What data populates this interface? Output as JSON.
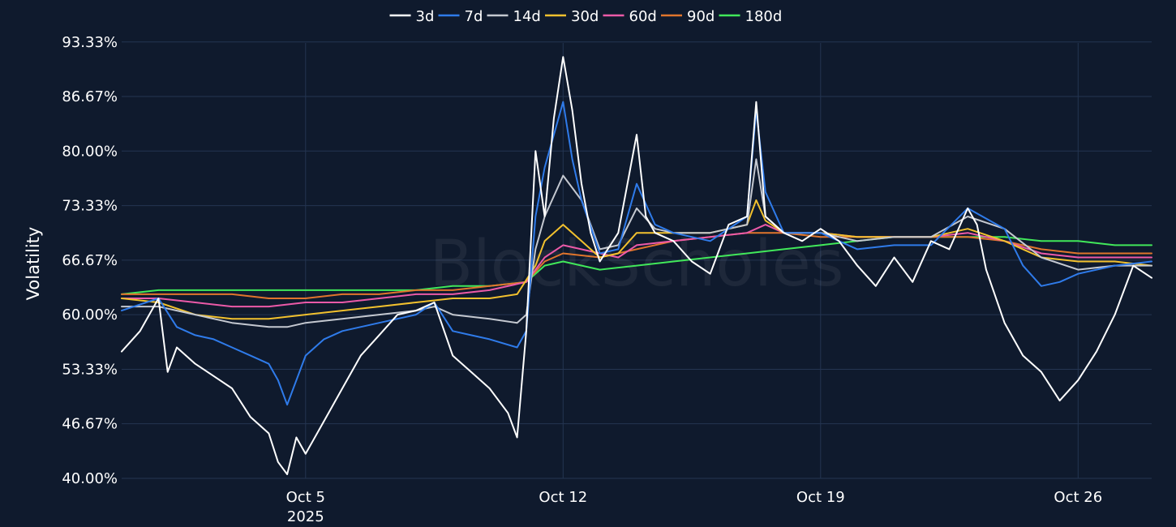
{
  "watermark": "BlockScholes",
  "chart_data": {
    "type": "line",
    "title": "",
    "xlabel": "",
    "ylabel": "Volatility",
    "x_range": [
      "2025-09-30T00:00",
      "2025-10-28T00:00"
    ],
    "ylim": [
      40,
      94
    ],
    "y_ticks": [
      40.0,
      46.67,
      53.33,
      60.0,
      66.67,
      73.33,
      80.0,
      86.67,
      93.33
    ],
    "y_tick_labels": [
      "40.00%",
      "46.67%",
      "53.33%",
      "60.00%",
      "66.67%",
      "73.33%",
      "80.00%",
      "86.67%",
      "93.33%"
    ],
    "x_ticks": [
      {
        "date": "2025-10-05",
        "label": "Oct 5",
        "sublabel": "2025"
      },
      {
        "date": "2025-10-12",
        "label": "Oct 12",
        "sublabel": ""
      },
      {
        "date": "2025-10-19",
        "label": "Oct 19",
        "sublabel": ""
      },
      {
        "date": "2025-10-26",
        "label": "Oct 26",
        "sublabel": ""
      }
    ],
    "grid": true,
    "legend_position": "top-center",
    "series": [
      {
        "name": "3d",
        "color": "#ffffff",
        "x": [
          "2025-09-30T00:00",
          "2025-09-30T12:00",
          "2025-10-01T00:00",
          "2025-10-01T06:00",
          "2025-10-01T12:00",
          "2025-10-02T00:00",
          "2025-10-02T12:00",
          "2025-10-03T00:00",
          "2025-10-03T12:00",
          "2025-10-04T00:00",
          "2025-10-04T06:00",
          "2025-10-04T12:00",
          "2025-10-04T18:00",
          "2025-10-05T00:00",
          "2025-10-05T12:00",
          "2025-10-06T00:00",
          "2025-10-06T12:00",
          "2025-10-07T00:00",
          "2025-10-07T12:00",
          "2025-10-08T00:00",
          "2025-10-08T12:00",
          "2025-10-09T00:00",
          "2025-10-09T12:00",
          "2025-10-10T00:00",
          "2025-10-10T12:00",
          "2025-10-10T18:00",
          "2025-10-11T00:00",
          "2025-10-11T06:00",
          "2025-10-11T12:00",
          "2025-10-11T18:00",
          "2025-10-12T00:00",
          "2025-10-12T06:00",
          "2025-10-12T12:00",
          "2025-10-12T18:00",
          "2025-10-13T00:00",
          "2025-10-13T12:00",
          "2025-10-14T00:00",
          "2025-10-14T06:00",
          "2025-10-14T12:00",
          "2025-10-15T00:00",
          "2025-10-15T12:00",
          "2025-10-16T00:00",
          "2025-10-16T12:00",
          "2025-10-17T00:00",
          "2025-10-17T06:00",
          "2025-10-17T12:00",
          "2025-10-18T00:00",
          "2025-10-18T12:00",
          "2025-10-19T00:00",
          "2025-10-19T12:00",
          "2025-10-20T00:00",
          "2025-10-20T12:00",
          "2025-10-21T00:00",
          "2025-10-21T12:00",
          "2025-10-22T00:00",
          "2025-10-22T12:00",
          "2025-10-23T00:00",
          "2025-10-23T06:00",
          "2025-10-23T12:00",
          "2025-10-24T00:00",
          "2025-10-24T12:00",
          "2025-10-25T00:00",
          "2025-10-25T12:00",
          "2025-10-26T00:00",
          "2025-10-26T12:00",
          "2025-10-27T00:00",
          "2025-10-27T12:00",
          "2025-10-28T00:00"
        ],
        "values": [
          55.5,
          58.0,
          62.0,
          53.0,
          56.0,
          54.0,
          52.5,
          51.0,
          47.5,
          45.5,
          42.0,
          40.5,
          45.0,
          43.0,
          47.0,
          51.0,
          55.0,
          57.5,
          60.0,
          60.5,
          61.5,
          55.0,
          53.0,
          51.0,
          48.0,
          45.0,
          58.0,
          80.0,
          72.0,
          84.0,
          91.5,
          85.0,
          76.0,
          70.0,
          66.5,
          70.0,
          82.0,
          72.0,
          70.0,
          69.0,
          66.5,
          65.0,
          71.0,
          72.0,
          86.0,
          72.0,
          70.0,
          69.0,
          70.5,
          69.0,
          66.0,
          63.5,
          67.0,
          64.0,
          69.0,
          68.0,
          73.0,
          71.0,
          65.5,
          59.0,
          55.0,
          53.0,
          49.5,
          52.0,
          55.5,
          60.0,
          66.0,
          64.5
        ]
      },
      {
        "name": "7d",
        "color": "#2f7bea",
        "x": [
          "2025-09-30T00:00",
          "2025-10-01T00:00",
          "2025-10-01T12:00",
          "2025-10-02T00:00",
          "2025-10-02T12:00",
          "2025-10-03T00:00",
          "2025-10-03T12:00",
          "2025-10-04T00:00",
          "2025-10-04T06:00",
          "2025-10-04T12:00",
          "2025-10-05T00:00",
          "2025-10-05T12:00",
          "2025-10-06T00:00",
          "2025-10-07T00:00",
          "2025-10-08T00:00",
          "2025-10-08T12:00",
          "2025-10-09T00:00",
          "2025-10-09T12:00",
          "2025-10-10T00:00",
          "2025-10-10T18:00",
          "2025-10-11T00:00",
          "2025-10-11T06:00",
          "2025-10-11T12:00",
          "2025-10-12T00:00",
          "2025-10-12T06:00",
          "2025-10-12T12:00",
          "2025-10-13T00:00",
          "2025-10-13T12:00",
          "2025-10-14T00:00",
          "2025-10-14T12:00",
          "2025-10-15T00:00",
          "2025-10-16T00:00",
          "2025-10-17T00:00",
          "2025-10-17T06:00",
          "2025-10-17T12:00",
          "2025-10-18T00:00",
          "2025-10-19T00:00",
          "2025-10-20T00:00",
          "2025-10-21T00:00",
          "2025-10-22T00:00",
          "2025-10-23T00:00",
          "2025-10-24T00:00",
          "2025-10-24T12:00",
          "2025-10-25T00:00",
          "2025-10-25T12:00",
          "2025-10-26T00:00",
          "2025-10-27T00:00",
          "2025-10-28T00:00"
        ],
        "values": [
          60.5,
          62.0,
          58.5,
          57.5,
          57.0,
          56.0,
          55.0,
          54.0,
          52.0,
          49.0,
          55.0,
          57.0,
          58.0,
          59.0,
          60.0,
          61.5,
          58.0,
          57.5,
          57.0,
          56.0,
          58.0,
          72.0,
          78.0,
          86.0,
          79.0,
          74.0,
          67.5,
          68.0,
          76.0,
          71.0,
          70.0,
          69.0,
          72.0,
          85.0,
          75.0,
          70.0,
          70.0,
          68.0,
          68.5,
          68.5,
          73.0,
          70.5,
          66.0,
          63.5,
          64.0,
          65.0,
          66.0,
          66.5
        ]
      },
      {
        "name": "14d",
        "color": "#c4c8d0",
        "x": [
          "2025-09-30T00:00",
          "2025-10-01T00:00",
          "2025-10-02T00:00",
          "2025-10-03T00:00",
          "2025-10-04T00:00",
          "2025-10-04T12:00",
          "2025-10-05T00:00",
          "2025-10-06T00:00",
          "2025-10-07T00:00",
          "2025-10-08T00:00",
          "2025-10-08T12:00",
          "2025-10-09T00:00",
          "2025-10-10T00:00",
          "2025-10-10T18:00",
          "2025-10-11T00:00",
          "2025-10-11T06:00",
          "2025-10-11T12:00",
          "2025-10-12T00:00",
          "2025-10-12T12:00",
          "2025-10-13T00:00",
          "2025-10-13T12:00",
          "2025-10-14T00:00",
          "2025-10-14T12:00",
          "2025-10-15T00:00",
          "2025-10-16T00:00",
          "2025-10-17T00:00",
          "2025-10-17T06:00",
          "2025-10-17T12:00",
          "2025-10-18T00:00",
          "2025-10-19T00:00",
          "2025-10-20T00:00",
          "2025-10-21T00:00",
          "2025-10-22T00:00",
          "2025-10-23T00:00",
          "2025-10-24T00:00",
          "2025-10-25T00:00",
          "2025-10-26T00:00",
          "2025-10-27T00:00",
          "2025-10-28T00:00"
        ],
        "values": [
          61.0,
          61.0,
          60.0,
          59.0,
          58.5,
          58.5,
          59.0,
          59.5,
          60.0,
          60.5,
          61.0,
          60.0,
          59.5,
          59.0,
          60.0,
          68.0,
          72.0,
          77.0,
          74.0,
          68.0,
          68.5,
          73.0,
          70.5,
          70.0,
          70.0,
          71.0,
          79.0,
          72.0,
          70.0,
          70.0,
          69.0,
          69.5,
          69.5,
          72.0,
          70.5,
          67.0,
          65.5,
          66.0,
          66.0
        ]
      },
      {
        "name": "30d",
        "color": "#f2c12e",
        "x": [
          "2025-09-30T00:00",
          "2025-10-01T00:00",
          "2025-10-02T00:00",
          "2025-10-03T00:00",
          "2025-10-04T00:00",
          "2025-10-05T00:00",
          "2025-10-06T00:00",
          "2025-10-07T00:00",
          "2025-10-08T00:00",
          "2025-10-09T00:00",
          "2025-10-10T00:00",
          "2025-10-10T18:00",
          "2025-10-11T06:00",
          "2025-10-11T12:00",
          "2025-10-12T00:00",
          "2025-10-12T12:00",
          "2025-10-13T00:00",
          "2025-10-13T12:00",
          "2025-10-14T00:00",
          "2025-10-15T00:00",
          "2025-10-16T00:00",
          "2025-10-17T00:00",
          "2025-10-17T06:00",
          "2025-10-17T12:00",
          "2025-10-18T00:00",
          "2025-10-19T00:00",
          "2025-10-20T00:00",
          "2025-10-21T00:00",
          "2025-10-22T00:00",
          "2025-10-23T00:00",
          "2025-10-24T00:00",
          "2025-10-25T00:00",
          "2025-10-26T00:00",
          "2025-10-27T00:00",
          "2025-10-28T00:00"
        ],
        "values": [
          62.0,
          61.5,
          60.0,
          59.5,
          59.5,
          60.0,
          60.5,
          61.0,
          61.5,
          62.0,
          62.0,
          62.5,
          66.0,
          69.0,
          71.0,
          69.0,
          67.0,
          67.5,
          70.0,
          70.0,
          70.0,
          71.0,
          74.0,
          71.5,
          70.0,
          70.0,
          69.5,
          69.5,
          69.5,
          70.5,
          69.0,
          67.0,
          66.5,
          66.5,
          66.0
        ]
      },
      {
        "name": "60d",
        "color": "#ec5aa8",
        "x": [
          "2025-09-30T00:00",
          "2025-10-01T00:00",
          "2025-10-02T00:00",
          "2025-10-03T00:00",
          "2025-10-04T00:00",
          "2025-10-05T00:00",
          "2025-10-06T00:00",
          "2025-10-07T00:00",
          "2025-10-08T00:00",
          "2025-10-09T00:00",
          "2025-10-10T00:00",
          "2025-10-11T00:00",
          "2025-10-11T12:00",
          "2025-10-12T00:00",
          "2025-10-13T00:00",
          "2025-10-13T12:00",
          "2025-10-14T00:00",
          "2025-10-15T00:00",
          "2025-10-16T00:00",
          "2025-10-17T00:00",
          "2025-10-17T12:00",
          "2025-10-18T00:00",
          "2025-10-19T00:00",
          "2025-10-20T00:00",
          "2025-10-21T00:00",
          "2025-10-22T00:00",
          "2025-10-23T00:00",
          "2025-10-24T00:00",
          "2025-10-25T00:00",
          "2025-10-26T00:00",
          "2025-10-27T00:00",
          "2025-10-28T00:00"
        ],
        "values": [
          62.0,
          62.0,
          61.5,
          61.0,
          61.0,
          61.5,
          61.5,
          62.0,
          62.5,
          62.5,
          63.0,
          64.0,
          67.0,
          68.5,
          67.5,
          67.0,
          68.5,
          69.0,
          69.5,
          70.0,
          71.0,
          70.0,
          70.0,
          69.5,
          69.5,
          69.5,
          70.0,
          69.0,
          67.5,
          67.0,
          67.0,
          67.0
        ]
      },
      {
        "name": "90d",
        "color": "#e0752c",
        "x": [
          "2025-09-30T00:00",
          "2025-10-01T00:00",
          "2025-10-02T00:00",
          "2025-10-03T00:00",
          "2025-10-04T00:00",
          "2025-10-05T00:00",
          "2025-10-06T00:00",
          "2025-10-07T00:00",
          "2025-10-08T00:00",
          "2025-10-09T00:00",
          "2025-10-10T00:00",
          "2025-10-11T00:00",
          "2025-10-11T12:00",
          "2025-10-12T00:00",
          "2025-10-13T00:00",
          "2025-10-14T00:00",
          "2025-10-15T00:00",
          "2025-10-16T00:00",
          "2025-10-17T00:00",
          "2025-10-18T00:00",
          "2025-10-19T00:00",
          "2025-10-20T00:00",
          "2025-10-21T00:00",
          "2025-10-22T00:00",
          "2025-10-23T00:00",
          "2025-10-24T00:00",
          "2025-10-25T00:00",
          "2025-10-26T00:00",
          "2025-10-27T00:00",
          "2025-10-28T00:00"
        ],
        "values": [
          62.5,
          62.5,
          62.5,
          62.5,
          62.0,
          62.0,
          62.5,
          62.5,
          63.0,
          63.0,
          63.5,
          64.0,
          66.5,
          67.5,
          67.0,
          68.0,
          69.0,
          69.5,
          70.0,
          70.0,
          69.5,
          69.5,
          69.5,
          69.5,
          69.5,
          69.0,
          68.0,
          67.5,
          67.5,
          67.5
        ]
      },
      {
        "name": "180d",
        "color": "#41e85a",
        "x": [
          "2025-09-30T00:00",
          "2025-10-01T00:00",
          "2025-10-02T00:00",
          "2025-10-03T00:00",
          "2025-10-04T00:00",
          "2025-10-05T00:00",
          "2025-10-06T00:00",
          "2025-10-07T00:00",
          "2025-10-08T00:00",
          "2025-10-09T00:00",
          "2025-10-10T00:00",
          "2025-10-11T00:00",
          "2025-10-11T12:00",
          "2025-10-12T00:00",
          "2025-10-13T00:00",
          "2025-10-14T00:00",
          "2025-10-15T00:00",
          "2025-10-16T00:00",
          "2025-10-17T00:00",
          "2025-10-18T00:00",
          "2025-10-19T00:00",
          "2025-10-20T00:00",
          "2025-10-21T00:00",
          "2025-10-22T00:00",
          "2025-10-23T00:00",
          "2025-10-24T00:00",
          "2025-10-25T00:00",
          "2025-10-26T00:00",
          "2025-10-27T00:00",
          "2025-10-28T00:00"
        ],
        "values": [
          62.5,
          63.0,
          63.0,
          63.0,
          63.0,
          63.0,
          63.0,
          63.0,
          63.0,
          63.5,
          63.5,
          64.0,
          66.0,
          66.5,
          65.5,
          66.0,
          66.5,
          67.0,
          67.5,
          68.0,
          68.5,
          69.0,
          69.5,
          69.5,
          69.5,
          69.5,
          69.0,
          69.0,
          68.5,
          68.5
        ]
      }
    ]
  }
}
